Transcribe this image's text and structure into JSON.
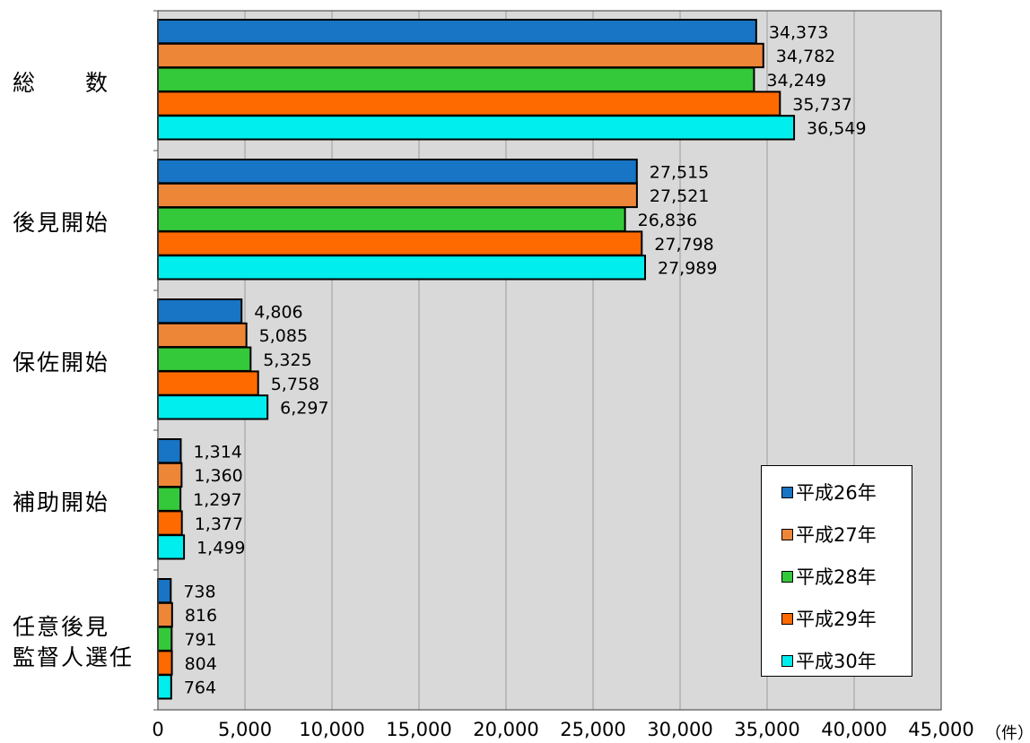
{
  "chart_data": {
    "type": "bar",
    "orientation": "horizontal",
    "categories": [
      "総　　数",
      "後見開始",
      "保佐開始",
      "補助開始",
      "任意後見監督人選任"
    ],
    "category_lines": [
      [
        "総　　数"
      ],
      [
        "後見開始"
      ],
      [
        "保佐開始"
      ],
      [
        "補助開始"
      ],
      [
        "任意後見",
        "監督人選任"
      ]
    ],
    "series": [
      {
        "name": "平成26年",
        "color": "#1874c4",
        "values": [
          34373,
          27515,
          4806,
          1314,
          738
        ],
        "labels": [
          "34,373",
          "27,515",
          "4,806",
          "1,314",
          "738"
        ]
      },
      {
        "name": "平成27年",
        "color": "#ee8638",
        "values": [
          34782,
          27521,
          5085,
          1360,
          816
        ],
        "labels": [
          "34,782",
          "27,521",
          "5,085",
          "1,360",
          "816"
        ]
      },
      {
        "name": "平成28年",
        "color": "#34c93a",
        "values": [
          34249,
          26836,
          5325,
          1297,
          791
        ],
        "labels": [
          "34,249",
          "26,836",
          "5,325",
          "1,297",
          "791"
        ]
      },
      {
        "name": "平成29年",
        "color": "#ff6a00",
        "values": [
          35737,
          27798,
          5758,
          1377,
          804
        ],
        "labels": [
          "35,737",
          "27,798",
          "5,758",
          "1,377",
          "804"
        ]
      },
      {
        "name": "平成30年",
        "color": "#00eeee",
        "values": [
          36549,
          27989,
          6297,
          1499,
          764
        ],
        "labels": [
          "36,549",
          "27,989",
          "6,297",
          "1,499",
          "764"
        ]
      }
    ],
    "xlim": [
      0,
      45000
    ],
    "x_ticks": [
      0,
      5000,
      10000,
      15000,
      20000,
      25000,
      30000,
      35000,
      40000,
      45000
    ],
    "x_tick_labels": [
      "0",
      "5,000",
      "10,000",
      "15,000",
      "20,000",
      "25,000",
      "30,000",
      "35,000",
      "40,000",
      "45,000"
    ],
    "x_unit": "（件）",
    "grid": "vertical",
    "plot_background": "#d9d9d9",
    "legend_position": "bottom-right"
  }
}
